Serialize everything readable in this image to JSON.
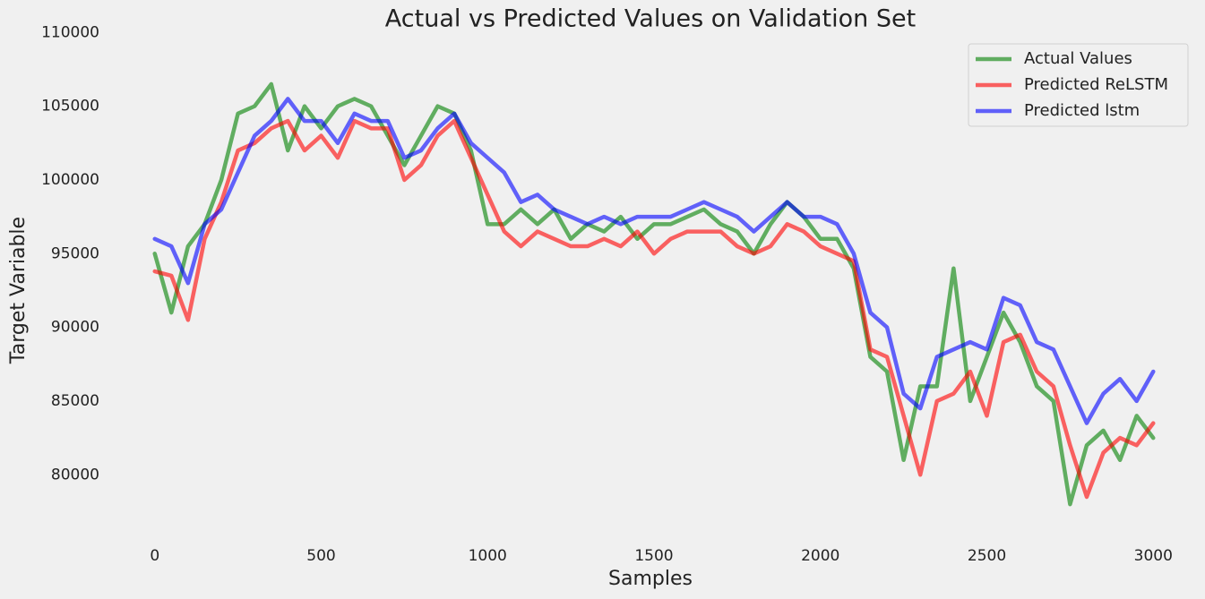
{
  "chart_data": {
    "type": "line",
    "title": "Actual vs Predicted Values on Validation Set",
    "xlabel": "Samples",
    "ylabel": "Target Variable",
    "x": [
      0,
      50,
      100,
      150,
      200,
      250,
      300,
      350,
      400,
      450,
      500,
      550,
      600,
      650,
      700,
      750,
      800,
      850,
      900,
      950,
      1000,
      1050,
      1100,
      1150,
      1200,
      1250,
      1300,
      1350,
      1400,
      1450,
      1500,
      1550,
      1600,
      1650,
      1700,
      1750,
      1800,
      1850,
      1900,
      1950,
      2000,
      2050,
      2100,
      2150,
      2200,
      2250,
      2300,
      2350,
      2400,
      2450,
      2500,
      2550,
      2600,
      2650,
      2700,
      2750,
      2800,
      2850,
      2900,
      2950,
      3000
    ],
    "series": [
      {
        "name": "Actual Values",
        "color": "green",
        "values": [
          95000,
          91000,
          95500,
          97000,
          100000,
          104500,
          105000,
          106500,
          102000,
          105000,
          103500,
          105000,
          105500,
          105000,
          103000,
          101000,
          103000,
          105000,
          104500,
          102000,
          97000,
          97000,
          98000,
          97000,
          98000,
          96000,
          97000,
          96500,
          97500,
          96000,
          97000,
          97000,
          97500,
          98000,
          97000,
          96500,
          95000,
          97000,
          98500,
          97500,
          96000,
          96000,
          94000,
          88000,
          87000,
          81000,
          86000,
          86000,
          94000,
          85000,
          88000,
          91000,
          89000,
          86000,
          85000,
          78000,
          82000,
          83000,
          81000,
          84000,
          82500
        ]
      },
      {
        "name": "Predicted ReLSTM",
        "color": "red",
        "values": [
          93800,
          93500,
          90500,
          96000,
          98500,
          102000,
          102500,
          103500,
          104000,
          102000,
          103000,
          101500,
          104000,
          103500,
          103500,
          100000,
          101000,
          103000,
          104000,
          101500,
          99000,
          96500,
          95500,
          96500,
          96000,
          95500,
          95500,
          96000,
          95500,
          96500,
          95000,
          96000,
          96500,
          96500,
          96500,
          95500,
          95000,
          95500,
          97000,
          96500,
          95500,
          95000,
          94500,
          88500,
          88000,
          84000,
          80000,
          85000,
          85500,
          87000,
          84000,
          89000,
          89500,
          87000,
          86000,
          82000,
          78500,
          81500,
          82500,
          82000,
          83500
        ]
      },
      {
        "name": "Predicted lstm",
        "color": "blue",
        "values": [
          96000,
          95500,
          93000,
          97000,
          98000,
          100500,
          103000,
          104000,
          105500,
          104000,
          104000,
          102500,
          104500,
          104000,
          104000,
          101500,
          102000,
          103500,
          104500,
          102500,
          101500,
          100500,
          98500,
          99000,
          98000,
          97500,
          97000,
          97500,
          97000,
          97500,
          97500,
          97500,
          98000,
          98500,
          98000,
          97500,
          96500,
          97500,
          98500,
          97500,
          97500,
          97000,
          95000,
          91000,
          90000,
          85500,
          84500,
          88000,
          88500,
          89000,
          88500,
          92000,
          91500,
          89000,
          88500,
          86000,
          83500,
          85500,
          86500,
          85000,
          87000
        ]
      }
    ],
    "xlim": [
      -150,
      3150
    ],
    "ylim": [
      75400,
      110200
    ],
    "xticks": [
      0,
      500,
      1000,
      1500,
      2000,
      2500,
      3000
    ],
    "yticks": [
      80000,
      85000,
      90000,
      95000,
      100000,
      105000,
      110000
    ],
    "grid": false,
    "legend": "upper right"
  }
}
